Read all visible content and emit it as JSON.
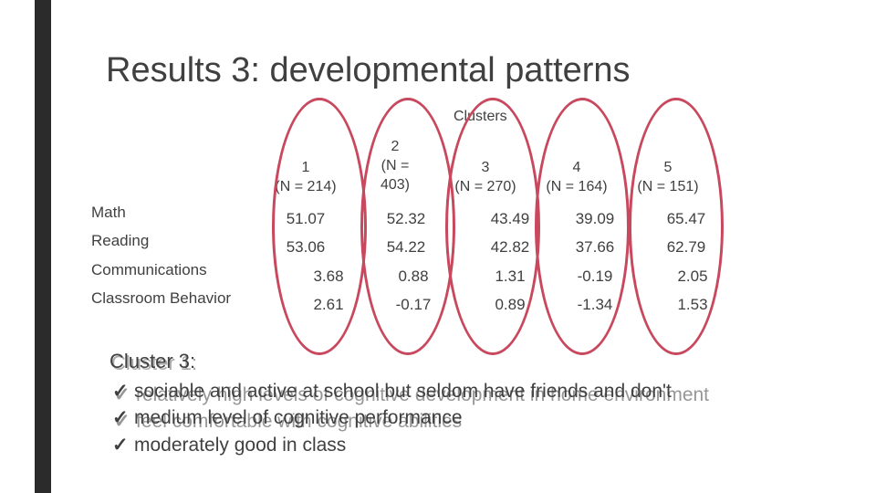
{
  "title": "Results 3: developmental patterns",
  "table": {
    "caption": "Clusters",
    "columns": [
      {
        "num": "1",
        "n": "(N = 214)"
      },
      {
        "num": "2",
        "n1": "(N =",
        "n2": "403)"
      },
      {
        "num": "3",
        "n": "(N = 270)"
      },
      {
        "num": "4",
        "n": "(N = 164)"
      },
      {
        "num": "5",
        "n": "(N = 151)"
      }
    ],
    "rows": [
      {
        "label": "Math",
        "values": [
          "51.07",
          "52.32",
          "43.49",
          "39.09",
          "65.47"
        ]
      },
      {
        "label": "Reading",
        "values": [
          "53.06",
          "54.22",
          "42.82",
          "37.66",
          "62.79"
        ]
      },
      {
        "label": "Communications",
        "values": [
          "3.68",
          "0.88",
          "1.31",
          "-0.19",
          "2.05"
        ]
      },
      {
        "label": "Classroom Behavior",
        "values": [
          "2.61",
          "-0.17",
          "0.89",
          "-1.34",
          "1.53"
        ]
      }
    ]
  },
  "annotation": {
    "label": "Cluster 3:",
    "label_overlap": "Cluster 1:",
    "bullets": [
      "sociable and active at school but seldom have friends and don't",
      "medium level of cognitive performance",
      "moderately good in class"
    ],
    "bullets_overlap": [
      "relatively high levels of cognitive development in home environment",
      "feel comfortable with cognitive abilities"
    ]
  },
  "colors": {
    "accent_ellipse": "#c8485e",
    "text": "#404040",
    "left_bar": "#2b2b2b"
  }
}
